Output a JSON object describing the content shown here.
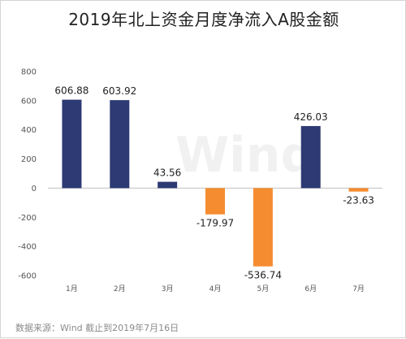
{
  "chart_data": {
    "type": "bar",
    "title": "2019年北上资金月度净流入A股金额",
    "categories": [
      "1月",
      "2月",
      "3月",
      "4月",
      "5月",
      "6月",
      "7月"
    ],
    "values": [
      606.88,
      603.92,
      43.56,
      -179.97,
      -536.74,
      426.03,
      -23.63
    ],
    "data_labels": [
      "606.88",
      "603.92",
      "43.56",
      "-179.97",
      "-536.74",
      "426.03",
      "-23.63"
    ],
    "ylim": [
      -600,
      800
    ],
    "yticks": [
      800,
      600,
      400,
      200,
      0,
      -200,
      -400,
      -600
    ],
    "xlabel": "",
    "ylabel": "",
    "grid": false,
    "colors": {
      "positive": "#2e3a73",
      "negative": "#f58c2f"
    }
  },
  "watermark": "Wind",
  "source": "数据来源：Wind  截止到2019年7月16日"
}
